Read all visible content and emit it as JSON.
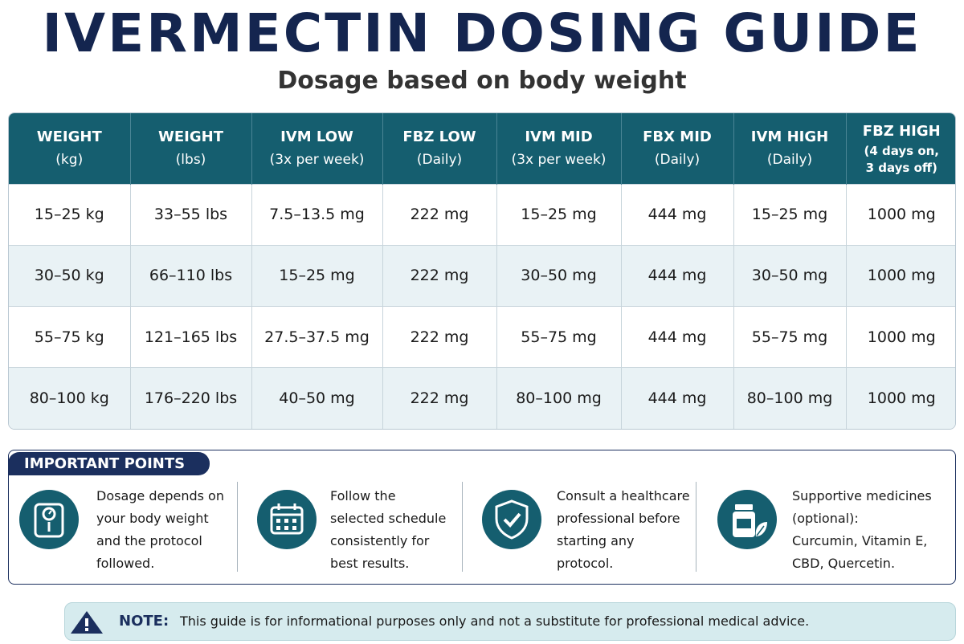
{
  "header": {
    "title": "IVERMECTIN DOSING GUIDE",
    "subtitle": "Dosage based on body weight"
  },
  "table": {
    "columns": [
      {
        "line1": "WEIGHT",
        "line2": "(kg)"
      },
      {
        "line1": "WEIGHT",
        "line2": "(lbs)"
      },
      {
        "line1": "IVM LOW",
        "line2": "(3x per week)"
      },
      {
        "line1": "FBZ LOW",
        "line2": "(Daily)"
      },
      {
        "line1": "IVM MID",
        "line2": "(3x per week)"
      },
      {
        "line1": "FBX MID",
        "line2": "(Daily)"
      },
      {
        "line1": "IVM HIGH",
        "line2": "(Daily)"
      },
      {
        "line1": "FBZ HIGH",
        "line2": "(4 days on,",
        "line3": "3 days off)"
      }
    ],
    "rows": [
      [
        "15–25 kg",
        "33–55 lbs",
        "7.5–13.5 mg",
        "222 mg",
        "15–25 mg",
        "444 mg",
        "15–25 mg",
        "1000 mg"
      ],
      [
        "30–50 kg",
        "66–110 lbs",
        "15–25 mg",
        "222 mg",
        "30–50 mg",
        "444 mg",
        "30–50 mg",
        "1000 mg"
      ],
      [
        "55–75 kg",
        "121–165 lbs",
        "27.5–37.5 mg",
        "222 mg",
        "55–75 mg",
        "444 mg",
        "55–75 mg",
        "1000 mg"
      ],
      [
        "80–100 kg",
        "176–220 lbs",
        "40–50 mg",
        "222 mg",
        "80–100 mg",
        "444 mg",
        "80–100 mg",
        "1000 mg"
      ]
    ]
  },
  "important_points": {
    "label": "IMPORTANT POINTS",
    "items": [
      {
        "icon": "scale-icon",
        "lines": [
          "Dosage depends on",
          "your body weight",
          "and the protocol",
          "followed."
        ]
      },
      {
        "icon": "calendar-icon",
        "lines": [
          "Follow the",
          "selected schedule",
          "consistently for",
          "best results."
        ]
      },
      {
        "icon": "shield-check-icon",
        "lines": [
          "Consult a healthcare",
          "professional before",
          "starting any",
          "protocol."
        ]
      },
      {
        "icon": "medicine-bottle-icon",
        "lines": [
          "Supportive medicines",
          "(optional):",
          "Curcumin, Vitamin E,",
          "CBD, Quercetin."
        ]
      }
    ]
  },
  "note": {
    "icon": "warning-icon",
    "label": "NOTE:",
    "text": "This guide is for informational purposes only and not a substitute for professional medical advice."
  },
  "colors": {
    "title": "#14254f",
    "header_bg": "#155e6f",
    "navy": "#1b2f5e",
    "row_alt": "#e9f2f5",
    "note_bg": "#d6ebee"
  }
}
